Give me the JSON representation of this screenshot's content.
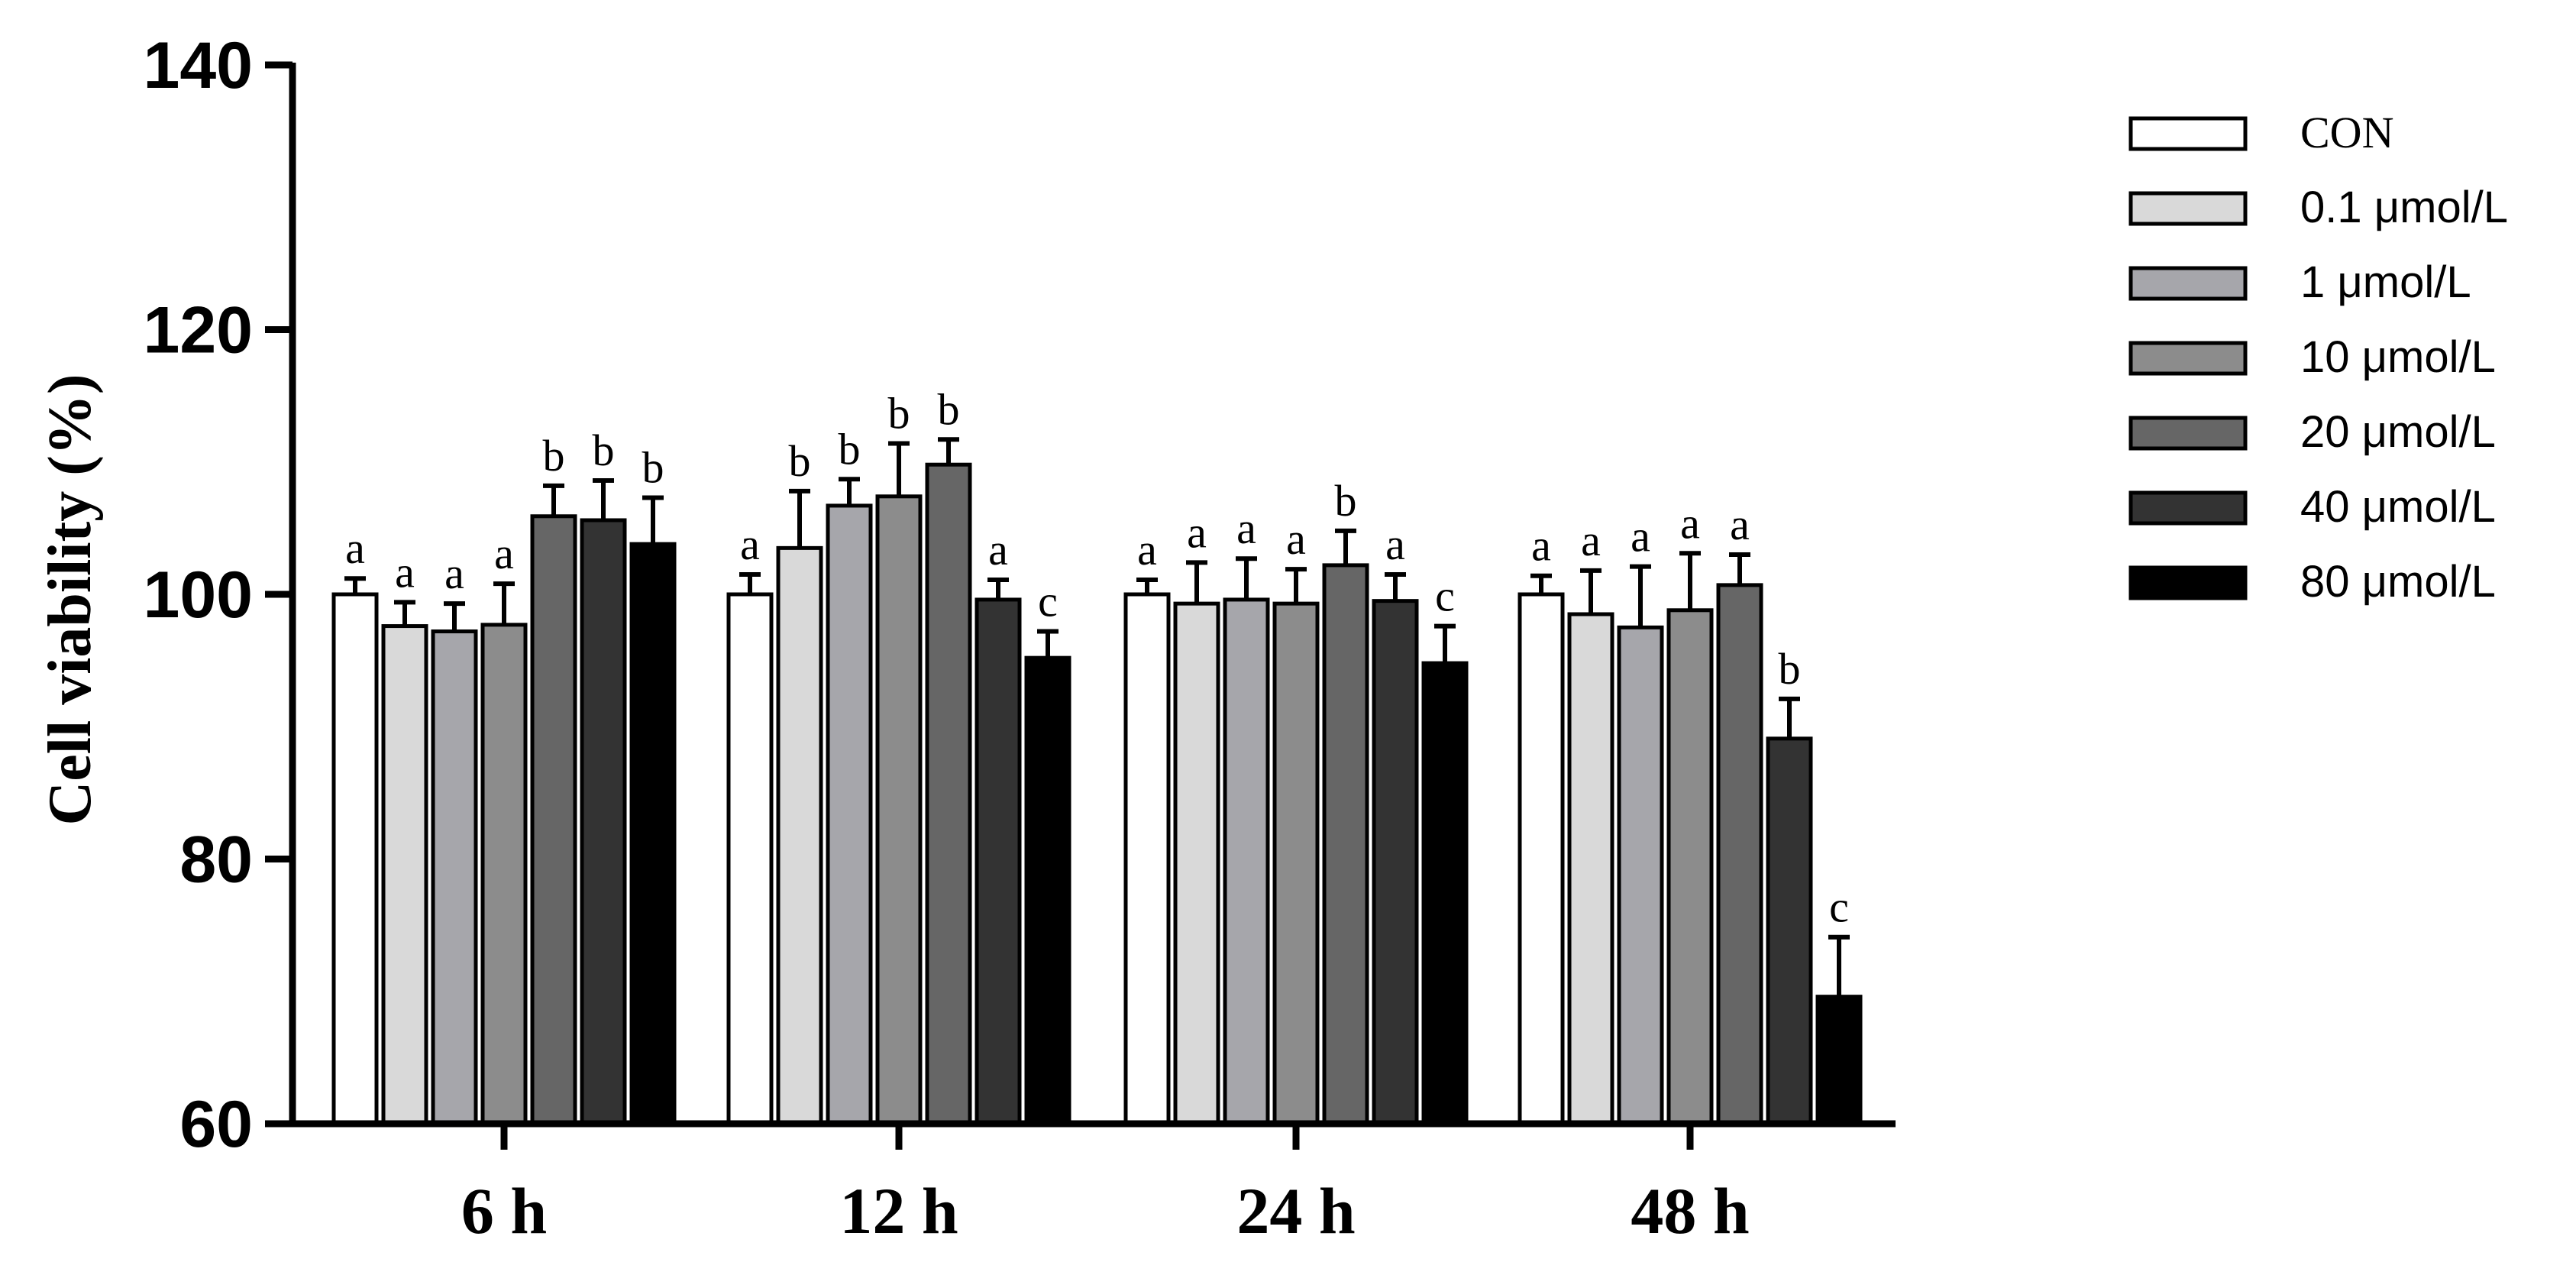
{
  "chart_data": {
    "type": "bar",
    "categories": [
      "6 h",
      "12 h",
      "24 h",
      "48 h"
    ],
    "ylabel": "Cell viability (%)",
    "xlabel": "",
    "ylim": [
      60,
      140
    ],
    "yticks": [
      60,
      80,
      100,
      120,
      140
    ],
    "grid": false,
    "legend_position": "right",
    "series": [
      {
        "name": "CON",
        "color": "#ffffff",
        "values": [
          100.0,
          100.0,
          100.0,
          100.0
        ],
        "errors": [
          1.2,
          1.5,
          1.1,
          1.4
        ],
        "labels": [
          "a",
          "a",
          "a",
          "a"
        ]
      },
      {
        "name": "0.1 μmol/L",
        "color": "#d9d9d9",
        "values": [
          97.6,
          103.5,
          99.3,
          98.5
        ],
        "errors": [
          1.8,
          4.3,
          3.1,
          3.3
        ],
        "labels": [
          "a",
          "b",
          "a",
          "a"
        ]
      },
      {
        "name": "1 μmol/L",
        "color": "#a6a6ab",
        "values": [
          97.2,
          106.7,
          99.6,
          97.5
        ],
        "errors": [
          2.1,
          2.0,
          3.1,
          4.6
        ],
        "labels": [
          "a",
          "b",
          "a",
          "a"
        ]
      },
      {
        "name": "10 μmol/L",
        "color": "#8c8c8c",
        "values": [
          97.7,
          107.4,
          99.3,
          98.8
        ],
        "errors": [
          3.1,
          4.0,
          2.6,
          4.3
        ],
        "labels": [
          "a",
          "b",
          "a",
          "a"
        ]
      },
      {
        "name": "20 μmol/L",
        "color": "#666666",
        "values": [
          105.9,
          109.8,
          102.2,
          100.7
        ],
        "errors": [
          2.3,
          1.9,
          2.6,
          2.3
        ],
        "labels": [
          "b",
          "b",
          "b",
          "a"
        ]
      },
      {
        "name": "40 μmol/L",
        "color": "#333333",
        "values": [
          105.6,
          99.6,
          99.5,
          89.1
        ],
        "errors": [
          3.0,
          1.5,
          2.0,
          3.0
        ],
        "labels": [
          "b",
          "a",
          "a",
          "b"
        ]
      },
      {
        "name": "80 μmol/L",
        "color": "#000000",
        "values": [
          103.8,
          95.2,
          94.8,
          69.6
        ],
        "errors": [
          3.5,
          2.0,
          2.8,
          4.5
        ],
        "labels": [
          "b",
          "c",
          "c",
          "c"
        ]
      }
    ]
  }
}
